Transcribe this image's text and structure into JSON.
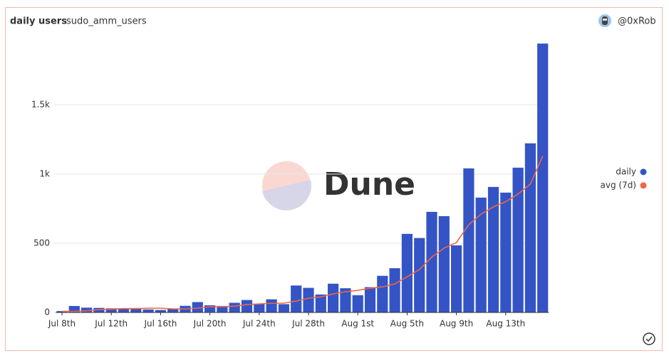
{
  "header": {
    "title": "daily users",
    "subtitle": "sudo_amm_users",
    "author": "@0xRob"
  },
  "watermark": "Dune",
  "chart_data": {
    "type": "bar",
    "categories": [
      "Jul 8th",
      null,
      null,
      null,
      "Jul 12th",
      null,
      null,
      null,
      "Jul 16th",
      null,
      null,
      null,
      "Jul 20th",
      null,
      null,
      null,
      "Jul 24th",
      null,
      null,
      null,
      "Jul 28th",
      null,
      null,
      null,
      "Aug 1st",
      null,
      null,
      null,
      "Aug 5th",
      null,
      null,
      null,
      "Aug 9th",
      null,
      null,
      null,
      "Aug 13th",
      null,
      null,
      null
    ],
    "series": [
      {
        "name": "daily",
        "color": "#3454c6",
        "type": "bar",
        "values": [
          10,
          47,
          35,
          33,
          30,
          28,
          30,
          22,
          18,
          28,
          48,
          75,
          52,
          47,
          70,
          90,
          62,
          95,
          60,
          195,
          178,
          130,
          208,
          175,
          125,
          183,
          265,
          320,
          568,
          538,
          727,
          696,
          485,
          1041,
          830,
          907,
          866,
          1046,
          1222,
          1943
        ]
      },
      {
        "name": "avg (7d)",
        "color": "#ee6644",
        "type": "line",
        "values": [
          8,
          8,
          12,
          20,
          24,
          28,
          28,
          31,
          31,
          26,
          26,
          31,
          41,
          41,
          46,
          57,
          62,
          67,
          67,
          82,
          103,
          113,
          134,
          150,
          160,
          175,
          185,
          206,
          258,
          310,
          400,
          465,
          505,
          634,
          711,
          763,
          800,
          855,
          928,
          1129
        ]
      }
    ],
    "ylim": [
      0,
      2000
    ],
    "yticks": [
      0,
      500,
      {
        "value": 1000,
        "label": "1k"
      },
      {
        "value": 1500,
        "label": "1.5k"
      }
    ],
    "grid": true,
    "legend": "right"
  }
}
